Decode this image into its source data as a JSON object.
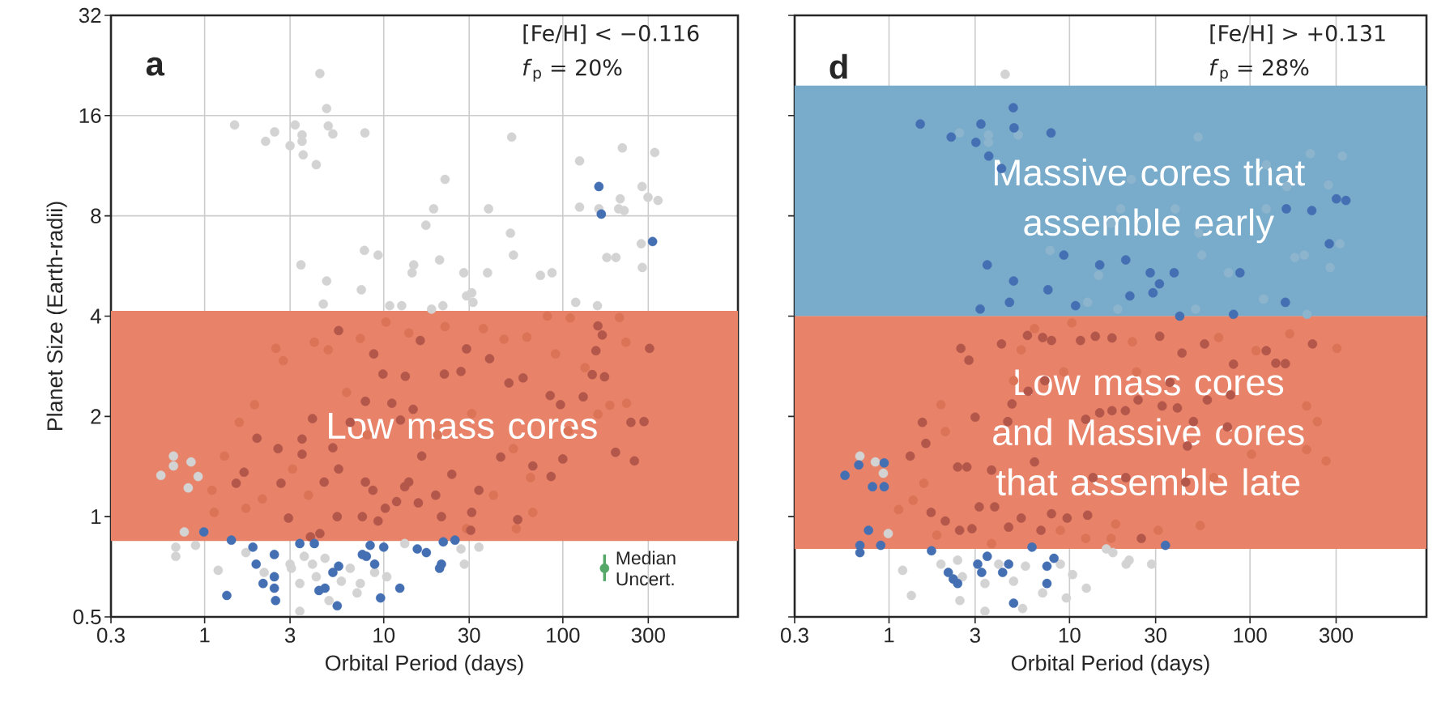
{
  "chart_data": [
    {
      "type": "scatter",
      "xlabel": "Orbital Period (days)",
      "ylabel": "Planet Size (Earth-radii)",
      "log": "xy",
      "grid": true,
      "marker": "circle",
      "xlim": [
        0.3,
        950
      ],
      "ylim": [
        0.5,
        32
      ],
      "xticks": [
        0.3,
        1,
        3,
        10,
        30,
        100,
        300
      ],
      "yticks": [
        0.5,
        1,
        2,
        4,
        8,
        16,
        32
      ],
      "annotations": [
        "a",
        "[Fe/H] < −0.116",
        "*f*$_{p}$ = 20%"
      ],
      "bands": [
        {
          "axis": "y",
          "from": 0.845,
          "to": 4.15,
          "label": "Low mass cores",
          "color": "#e8836a"
        }
      ],
      "series": [
        {
          "color": "#d3d3d3",
          "x": [
            4.4,
            4.8,
            1.47,
            2.46,
            2.19,
            3.2,
            3.5,
            3.0,
            3.5,
            4.9,
            5.2,
            3.55,
            4.2,
            7.85,
            51.8,
            22,
            124,
            215,
            326,
            277,
            299,
            340,
            209,
            124,
            159,
            205,
            220,
            19,
            17.2,
            38.5,
            51,
            53,
            274,
            198,
            176,
            278,
            7.8,
            9.3,
            3.45,
            4.8,
            7.5,
            4.6,
            14.7,
            14.4,
            20.5,
            28,
            31,
            38,
            29,
            31.5,
            21.4,
            18.5,
            10.8,
            12.6,
            75,
            87,
            118,
            156,
            0.57,
            0.67,
            0.67,
            0.84,
            0.81,
            0.77,
            0.69,
            0.69,
            0.89,
            0.92,
            1.19,
            1.7,
            2.15,
            3.0,
            3.05,
            3.4,
            3.6,
            4.0,
            4.2,
            4.7,
            4.95,
            5.8,
            6.5,
            7.1,
            7.4,
            8.9,
            10.4,
            13.1,
            28.2,
            27,
            34,
            3.4
          ],
          "values": [
            21.4,
            16.8,
            15.0,
            14.3,
            13.4,
            15.0,
            14.0,
            13.0,
            13.4,
            14.9,
            14.1,
            12.2,
            11.4,
            14.2,
            13.8,
            10.3,
            11.7,
            12.8,
            12.4,
            9.8,
            9.1,
            8.9,
            9.0,
            8.5,
            8.4,
            8.4,
            8.3,
            8.4,
            7.5,
            8.4,
            7.1,
            6.1,
            6.6,
            6.0,
            6.0,
            5.6,
            6.3,
            6.1,
            5.7,
            5.1,
            4.8,
            4.35,
            5.7,
            5.4,
            5.9,
            5.4,
            4.7,
            5.4,
            4.6,
            4.4,
            4.3,
            4.2,
            4.3,
            4.3,
            5.3,
            5.4,
            4.4,
            4.3,
            1.33,
            1.52,
            1.42,
            1.46,
            1.22,
            0.9,
            0.81,
            0.76,
            0.82,
            1.32,
            0.69,
            0.78,
            0.68,
            0.72,
            0.7,
            0.63,
            0.76,
            0.72,
            0.66,
            0.75,
            0.56,
            0.64,
            0.7,
            0.59,
            0.63,
            0.68,
            0.66,
            0.83,
            0.72,
            0.8,
            0.81,
            0.52
          ]
        },
        {
          "color": "#db7357",
          "x": [
            2.5,
            2.75,
            4.1,
            4.9,
            7.4,
            10.3,
            13.8,
            22,
            36,
            47,
            63,
            82,
            110,
            207,
            225,
            133,
            183,
            227,
            157,
            107,
            53,
            41,
            68,
            55,
            29,
            1.29,
            1.56,
            1.9,
            1.1,
            1.13,
            1.7,
            2.1,
            3.1,
            3.8,
            6.2,
            8.1,
            20,
            31,
            91,
            66
          ],
          "values": [
            3.2,
            2.94,
            3.34,
            3.17,
            3.43,
            3.84,
            3.56,
            3.72,
            3.67,
            3.41,
            3.46,
            4.0,
            3.95,
            3.96,
            3.34,
            2.8,
            2.16,
            2.19,
            2.03,
            1.81,
            1.6,
            1.16,
            1.03,
            0.92,
            0.92,
            1.52,
            1.92,
            2.17,
            1.2,
            1.03,
            1.06,
            1.13,
            1.39,
            1.16,
            2.36,
            1.76,
            1.76,
            2.04,
            3.08,
            1.31
          ]
        },
        {
          "color": "#b4574b",
          "x": [
            5.6,
            8.8,
            16,
            9.9,
            13.2,
            21.8,
            27,
            29,
            39,
            157,
            166,
            153,
            305,
            146,
            171,
            60,
            50,
            130,
            85,
            97,
            240,
            284,
            197,
            251,
            86,
            68,
            45,
            100,
            56,
            30.6,
            31,
            21,
            34,
            24,
            19.5,
            15.6,
            13.1,
            11.8,
            10.2,
            9.3,
            7.6,
            5.5,
            4.4,
            3.9,
            2.94,
            1.96,
            1.66,
            1.5,
            2.67,
            2.57,
            3.5,
            3.5,
            5.6,
            4.65,
            7.9,
            8.7,
            13.8,
            16.3,
            14.6,
            11.1,
            7.9,
            6.5,
            5.2,
            4.0,
            12.4
          ],
          "values": [
            3.62,
            3.08,
            3.38,
            2.68,
            2.64,
            2.68,
            2.73,
            3.19,
            2.98,
            3.74,
            3.51,
            3.15,
            3.2,
            2.67,
            2.63,
            2.61,
            2.52,
            2.29,
            2.31,
            2.17,
            1.92,
            1.93,
            1.56,
            1.47,
            1.32,
            1.42,
            1.51,
            1.49,
            0.98,
            0.91,
            1.03,
            1.0,
            1.2,
            1.34,
            1.16,
            1.1,
            1.23,
            1.11,
            1.06,
            0.97,
            1.0,
            1.0,
            0.89,
            0.87,
            0.99,
            1.72,
            1.36,
            1.26,
            1.26,
            1.6,
            1.54,
            1.71,
            1.39,
            1.27,
            1.27,
            1.2,
            1.27,
            1.52,
            2.1,
            2.19,
            2.22,
            1.92,
            1.61,
            1.97,
            1.95
          ]
        },
        {
          "color": "#4470b3",
          "x": [
            159,
            164,
            317,
            0.99,
            1.41,
            1.33,
            1.86,
            1.94,
            2.12,
            2.45,
            2.45,
            2.45,
            2.49,
            3.4,
            4.1,
            4.35,
            4.7,
            5.2,
            5.6,
            5.5,
            7.6,
            8.0,
            8.4,
            8.9,
            10,
            9.6,
            12.3,
            15.4,
            17.3,
            21,
            20.5,
            21.5,
            25
          ],
          "values": [
            9.8,
            8.1,
            6.7,
            0.9,
            0.85,
            0.58,
            0.81,
            0.72,
            0.63,
            0.77,
            0.66,
            0.61,
            0.56,
            0.83,
            0.83,
            0.6,
            0.61,
            0.68,
            0.71,
            0.54,
            0.77,
            0.76,
            0.82,
            0.72,
            0.81,
            0.57,
            0.61,
            0.8,
            0.78,
            0.72,
            0.7,
            0.84,
            0.85
          ]
        },
        {
          "name": "Median Uncert.",
          "color": "#55a868",
          "x": [
            171
          ],
          "values": [
            0.7
          ],
          "errors": [
            [
              0.64,
              0.77
            ]
          ]
        }
      ]
    },
    {
      "type": "scatter",
      "xlabel": "Orbital Period (days)",
      "log": "xy",
      "grid": true,
      "marker": "circle",
      "tick_labels": "x",
      "xlim": [
        0.3,
        950
      ],
      "ylim": [
        0.5,
        32
      ],
      "xticks": [
        0.3,
        1,
        3,
        10,
        30,
        100,
        300
      ],
      "yticks": [
        0.5,
        1,
        2,
        4,
        8,
        16,
        32
      ],
      "annotations": [
        "d",
        "[Fe/H] > +0.131",
        "*f*$_{p}$ = 28%"
      ],
      "bands": [
        {
          "axis": "y",
          "from": 4,
          "to": 19.7,
          "label": "Massive cores that assemble early",
          "color": "#79abcb"
        },
        {
          "axis": "y",
          "from": 0.8,
          "to": 4,
          "label": "Low mass cores and Massive cores that assemble late",
          "color": "#e8836a"
        }
      ],
      "series": [
        {
          "color": "#d3d3d3",
          "x": [
            4.4,
            0.69,
            0.84,
            0.93,
            0.99,
            1.19,
            1.33,
            1.94,
            2.4,
            2.55,
            2.47,
            3.4,
            3.4,
            4.05,
            4.9,
            5.5,
            5.7,
            7.1,
            8.9,
            10.4,
            9.6,
            12.4,
            16,
            17.4,
            20.6,
            21.4,
            28.5
          ],
          "values": [
            21.3,
            1.52,
            1.46,
            1.35,
            0.89,
            0.69,
            0.58,
            0.72,
            0.74,
            0.66,
            0.56,
            0.63,
            0.52,
            0.72,
            0.64,
            0.53,
            0.71,
            0.59,
            0.72,
            0.67,
            0.57,
            0.61,
            0.8,
            0.78,
            0.72,
            0.74,
            0.72
          ]
        },
        {
          "color": "#8db4cd",
          "x": [
            2.46,
            3.56,
            3.56,
            5.2,
            51.6,
            216,
            325,
            123,
            22,
            19.2,
            38.5,
            17.0,
            52,
            54,
            177,
            200,
            278,
            315,
            7.8,
            14.5,
            76,
            119,
            12.6,
            18.5,
            50,
            207,
            123,
            160,
            272
          ],
          "values": [
            14.2,
            14.0,
            13.3,
            14.0,
            13.8,
            12.3,
            12.1,
            11.4,
            10.3,
            8.4,
            8.4,
            7.6,
            7.1,
            6.1,
            6.0,
            6.1,
            5.6,
            6.6,
            6.3,
            5.3,
            5.4,
            4.5,
            4.4,
            4.2,
            4.2,
            4.05,
            8.4,
            9.8,
            9.9
          ]
        },
        {
          "color": "#db7357",
          "x": [
            5.4,
            6.4,
            10.3,
            22.3,
            67,
            108,
            166,
            303,
            206,
            236,
            264,
            206,
            102,
            63,
            53,
            31,
            18,
            1.94,
            2.05,
            1.56,
            1.36,
            1.13,
            1.84,
            3.7,
            8.9,
            12.3,
            17,
            4.9,
            9.3,
            23.5
          ],
          "values": [
            3.17,
            3.67,
            3.82,
            3.35,
            3.45,
            3.15,
            3.54,
            3.2,
            2.15,
            1.93,
            1.47,
            1.59,
            1.54,
            1.31,
            0.94,
            0.91,
            0.95,
            2.17,
            1.8,
            1.26,
            1.12,
            1.05,
            0.88,
            0.83,
            0.91,
            0.86,
            0.86,
            2.56,
            2.72,
            2.72
          ]
        },
        {
          "color": "#b4574b",
          "x": [
            4.2,
            2.5,
            2.77,
            5.85,
            7.1,
            7.95,
            11.5,
            13.9,
            17.2,
            31.6,
            42,
            56,
            81,
            123,
            139,
            157,
            222,
            78,
            58,
            39.6,
            36,
            24,
            20.4,
            17.2,
            12.3,
            14.7,
            7.3,
            5.9,
            4.8,
            4.55,
            3.0,
            2.7,
            2.4,
            1.53,
            1.6,
            1.31,
            1.71,
            2.05,
            2.46,
            2.88,
            3.16,
            3.85,
            4.6,
            5.4,
            6.95,
            7.95,
            9.7,
            12.6,
            25,
            20.5,
            44,
            45,
            48.6,
            75,
            32.6,
            3.7,
            6.4,
            13.5
          ],
          "values": [
            3.3,
            3.2,
            2.95,
            3.5,
            3.45,
            3.38,
            3.38,
            3.48,
            3.44,
            3.48,
            3.1,
            3.3,
            2.87,
            3.15,
            2.89,
            2.88,
            3.3,
            2.32,
            2.24,
            2.12,
            2.53,
            2.24,
            2.08,
            2.08,
            1.96,
            2.05,
            2.56,
            2.38,
            2.18,
            1.93,
            1.99,
            1.41,
            1.41,
            1.92,
            1.66,
            1.52,
            1.03,
            0.97,
            0.91,
            0.92,
            1.07,
            1.07,
            0.93,
            0.99,
            0.91,
            1.02,
            0.99,
            1.01,
            0.86,
            1.31,
            1.27,
            1.63,
            1.93,
            1.86,
            2.15,
            1.38,
            1.46,
            1.31
          ]
        },
        {
          "color": "#4470b3",
          "x": [
            1.49,
            2.21,
            3.03,
            3.23,
            4.88,
            4.93,
            7.9,
            3.57,
            4.2,
            301,
            340,
            159,
            220,
            275,
            9.3,
            3.5,
            14.7,
            20.5,
            28,
            38,
            88,
            4.9,
            7.6,
            31.5,
            21.6,
            29,
            10.8,
            4.65,
            3.2,
            157,
            40.8,
            81,
            0.57,
            0.68,
            0.94,
            0.81,
            0.94,
            0.77,
            0.69,
            0.69,
            0.9,
            1.72,
            2.13,
            2.27,
            2.4,
            3.1,
            3.26,
            3.5,
            4.26,
            4.6,
            4.9,
            7.5,
            7.5,
            8.2,
            6.2,
            34
          ],
          "values": [
            15.1,
            13.8,
            13.3,
            15.1,
            16.9,
            14.7,
            14.2,
            12.1,
            11.1,
            9.0,
            8.9,
            8.4,
            8.3,
            6.6,
            6.1,
            5.7,
            5.7,
            5.9,
            5.4,
            5.4,
            5.4,
            5.1,
            4.8,
            5.0,
            4.6,
            4.7,
            4.3,
            4.4,
            4.2,
            4.4,
            4.0,
            4.05,
            1.33,
            1.43,
            1.45,
            1.23,
            1.23,
            0.91,
            0.82,
            0.78,
            0.82,
            0.79,
            0.68,
            0.65,
            0.63,
            0.72,
            0.68,
            0.76,
            0.68,
            0.72,
            0.55,
            0.71,
            0.63,
            0.75,
            0.81,
            0.82
          ]
        }
      ]
    }
  ]
}
